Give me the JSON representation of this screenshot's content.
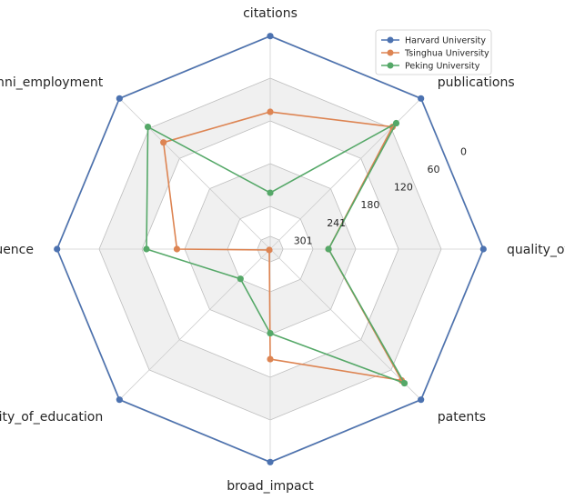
{
  "chart_data": {
    "type": "radar",
    "axes": [
      "citations",
      "publications",
      "quality_of_faculty",
      "patents",
      "broad_impact",
      "quality_of_education",
      "influence",
      "alumni_employment"
    ],
    "radial_ticks": [
      "0",
      "60",
      "120",
      "180",
      "241",
      "301"
    ],
    "radial_range": [
      0,
      330
    ],
    "radial_inverted": true,
    "grid": true,
    "legend_placement": "top-right",
    "series": [
      {
        "name": "Harvard University",
        "color": "#4c72b0",
        "values": [
          1,
          1,
          1,
          1,
          1,
          1,
          1,
          1
        ]
      },
      {
        "name": "Tsinghua University",
        "color": "#dd8452",
        "values": [
          118,
          63,
          240,
          43,
          160,
          328,
          186,
          97
        ]
      },
      {
        "name": "Peking University",
        "color": "#55a868",
        "values": [
          243,
          55,
          240,
          37,
          200,
          265,
          139,
          63
        ]
      }
    ]
  }
}
